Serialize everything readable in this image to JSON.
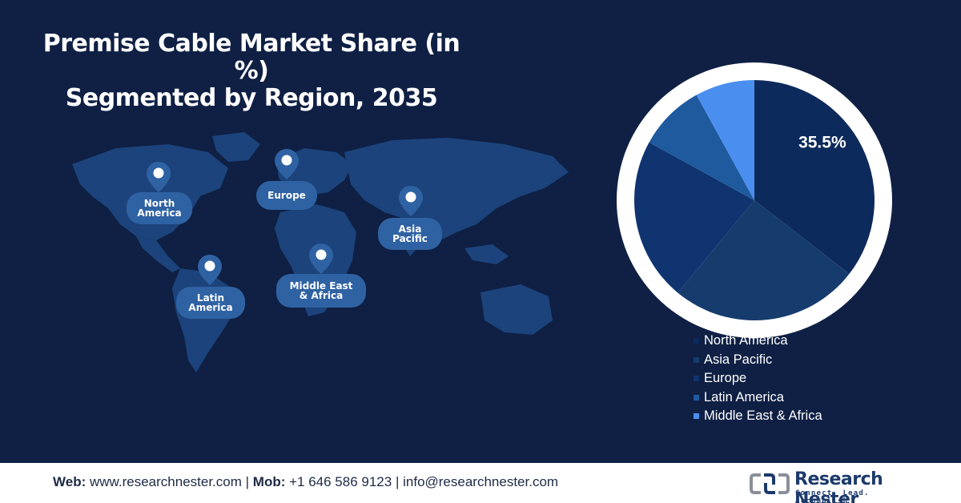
{
  "title": {
    "line1": "Premise Cable Market Share (in %)",
    "line2": "Segmented by Region, 2035"
  },
  "map": {
    "pins": [
      {
        "label": "North\nAmerica"
      },
      {
        "label": "Europe"
      },
      {
        "label": "Asia\nPacific"
      },
      {
        "label": "Latin\nAmerica"
      },
      {
        "label": "Middle East\n& Africa"
      }
    ]
  },
  "chart_data": {
    "type": "pie",
    "title": "Premise Cable Market Share (in %) Segmented by Region, 2035",
    "slices": [
      {
        "label": "North America",
        "value": 35.5,
        "color": "#0d2a5c",
        "data_label": "35.5%"
      },
      {
        "label": "Asia Pacific",
        "value": 25.5,
        "color": "#163c6e"
      },
      {
        "label": "Europe",
        "value": 22,
        "color": "#0f3470"
      },
      {
        "label": "Latin America",
        "value": 9,
        "color": "#1f5a9e"
      },
      {
        "label": "Middle East & Africa",
        "value": 8,
        "color": "#4a8ff0"
      }
    ],
    "legend_position": "bottom-right"
  },
  "footer": {
    "web_label": "Web:",
    "web": "www.researchnester.com",
    "mob_label": "Mob:",
    "mob": "+1 646 586 9123",
    "email": "info@researchnester.com",
    "sep": "|"
  },
  "logo": {
    "name": "Research Nester",
    "tagline": "Connect. Lead. Accomplish"
  }
}
